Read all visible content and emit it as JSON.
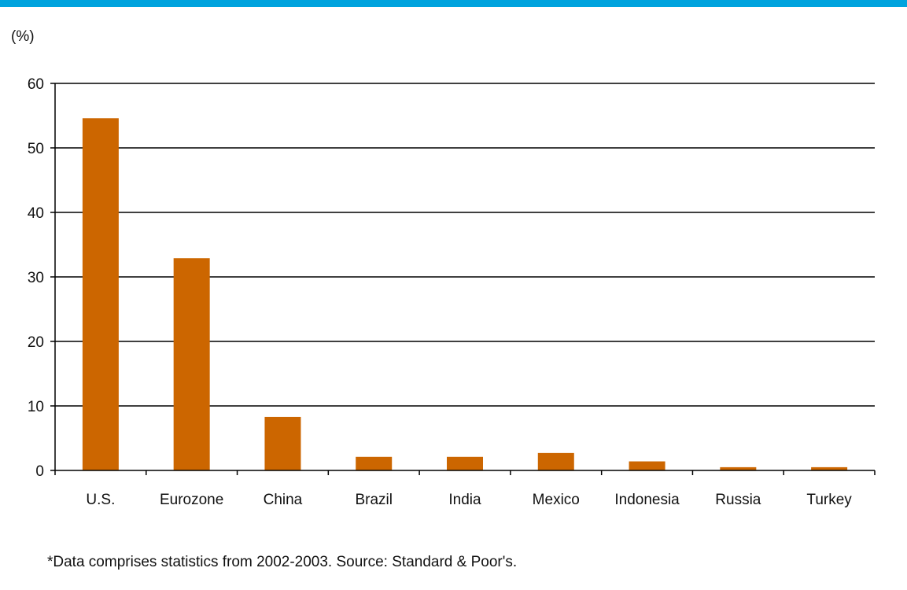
{
  "colors": {
    "top_bar": "#00a3de",
    "bar": "#cc6600",
    "gridline": "#000000",
    "text": "#111111"
  },
  "unit_label": "(%)",
  "footnote": "*Data comprises statistics from 2002-2003. Source: Standard & Poor's.",
  "chart_data": {
    "type": "bar",
    "categories": [
      "U.S.",
      "Eurozone",
      "China",
      "Brazil",
      "India",
      "Mexico",
      "Indonesia",
      "Russia",
      "Turkey"
    ],
    "values": [
      54.6,
      32.9,
      8.3,
      2.1,
      2.1,
      2.7,
      1.4,
      0.5,
      0.5
    ],
    "title": "",
    "xlabel": "",
    "ylabel": "(%)",
    "ylim": [
      0,
      60
    ],
    "yticks": [
      0,
      10,
      20,
      30,
      40,
      50,
      60
    ],
    "grid": true,
    "legend": "none"
  }
}
